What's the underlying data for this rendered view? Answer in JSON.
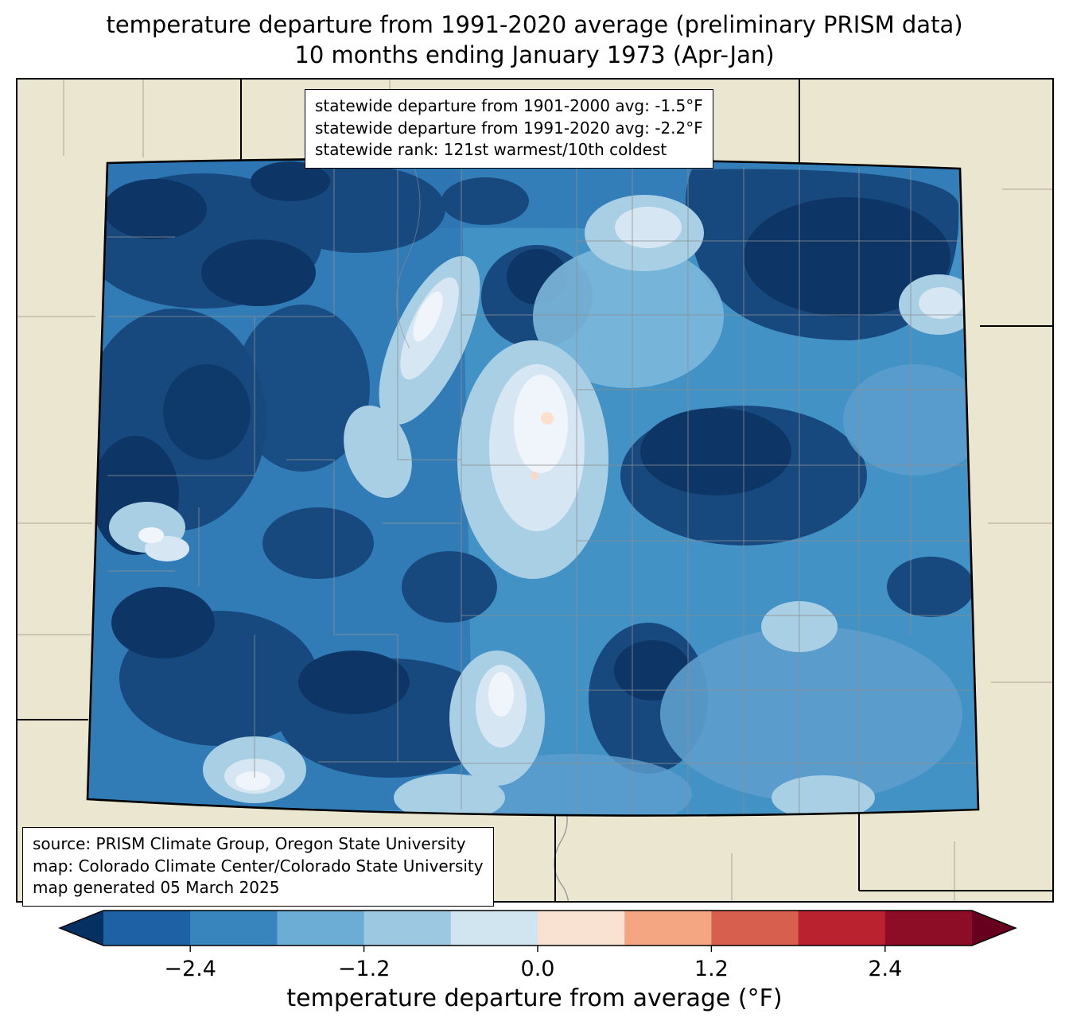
{
  "title": {
    "line1": "temperature departure from 1991-2020 average (preliminary PRISM data)",
    "line2": "10 months ending January 1973 (Apr-Jan)"
  },
  "stats_box": {
    "lines": [
      "statewide departure from 1901-2000 avg: -1.5°F",
      "statewide departure from 1991-2020 avg: -2.2°F",
      "statewide rank: 121st warmest/10th coldest"
    ]
  },
  "source_box": {
    "lines": [
      "source: PRISM Climate Group, Oregon State University",
      "map: Colorado Climate Center/Colorado State University",
      "map generated 05 March 2025"
    ]
  },
  "colorbar": {
    "xlabel": "temperature departure from average (°F)",
    "range": [
      -3,
      3
    ],
    "tick_labels": [
      "−2.4",
      "−1.2",
      "0.0",
      "1.2",
      "2.4"
    ],
    "tick_values": [
      -2.4,
      -1.2,
      0.0,
      1.2,
      2.4
    ],
    "segment_colors": [
      "#1e61a5",
      "#3885bd",
      "#6badd4",
      "#9cc9e1",
      "#d1e5f0",
      "#f9e2d2",
      "#f4a582",
      "#d6604d",
      "#ba2230",
      "#8c0d25"
    ],
    "arrow_left_color": "#053061",
    "arrow_right_color": "#67001f"
  },
  "map": {
    "colors": {
      "surrounding_land": "#ebe6cf",
      "state_border": "#000000",
      "county_line": "#8f8f8f",
      "deepest_blue": "#0d3666",
      "base_blue": "#4292c6"
    }
  }
}
